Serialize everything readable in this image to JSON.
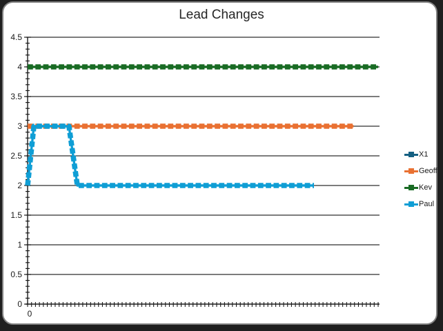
{
  "window": {
    "background_color": "#1f1f1f",
    "card_fill": "#ffffff",
    "card_border_color": "#828282"
  },
  "chart_data": {
    "type": "line",
    "title": "Lead Changes",
    "line_style": {
      "dash": true,
      "marker": "square"
    },
    "grid": "horizontal-major",
    "legend_position": "right",
    "y_axis": {
      "min": 0,
      "max": 4.5,
      "major_step": 0.5,
      "minor_step": 0.1,
      "tick_labels": [
        "0",
        "0.5",
        "1",
        "1.5",
        "2",
        "2.5",
        "3",
        "3.5",
        "4",
        "4.5"
      ]
    },
    "x_axis": {
      "labeled_tick": "0",
      "minor_ticks": 90,
      "note": "category axis; only first category labeled, x positions below are fractions of plot width"
    },
    "series": [
      {
        "name": "X1",
        "color": "#156082",
        "points": [],
        "note": "legend entry only; line not visible in plot area (obscured by other series)"
      },
      {
        "name": "Geoff",
        "color": "#E97132",
        "points": [
          [
            0,
            3
          ],
          [
            0.93,
            3
          ]
        ]
      },
      {
        "name": "Kev",
        "color": "#196B24",
        "points": [
          [
            0,
            4
          ],
          [
            1,
            4
          ]
        ]
      },
      {
        "name": "Paul",
        "color": "#0F9ED5",
        "points": [
          [
            0,
            2
          ],
          [
            0.018,
            3
          ],
          [
            0.118,
            3
          ],
          [
            0.142,
            2
          ],
          [
            0.817,
            2
          ]
        ]
      }
    ]
  }
}
